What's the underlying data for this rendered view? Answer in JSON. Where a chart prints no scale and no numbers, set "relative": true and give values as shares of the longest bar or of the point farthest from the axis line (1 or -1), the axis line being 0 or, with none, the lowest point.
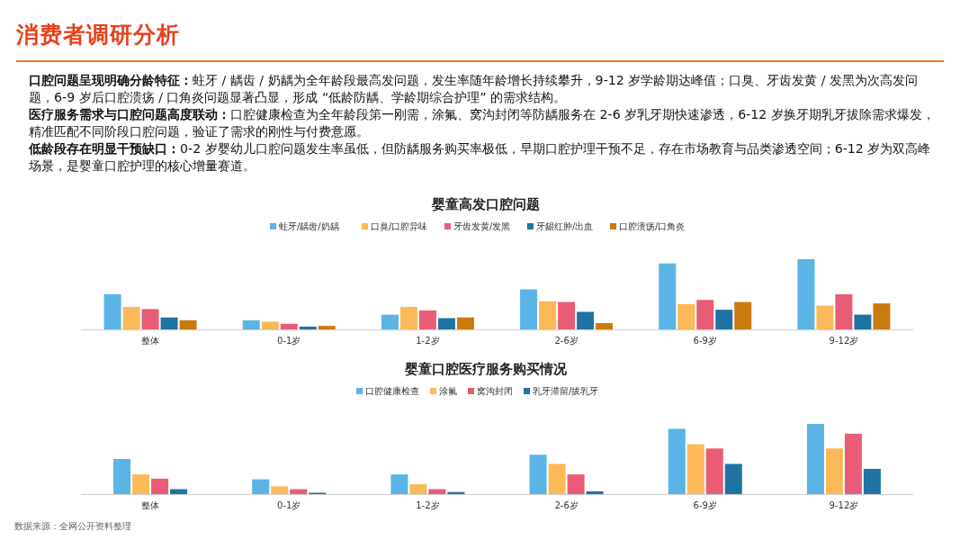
{
  "chart_data": [
    {
      "type": "other",
      "title": "消费者调研分析",
      "annotations": [
        "**口腔问题呈现明确分龄特征：**蛀牙 / 龋齿 / 奶龋为全年龄段最高发问题，发生率随年龄增长持续攀升，9-12 岁学龄期达峰值；口臭、牙齿发黄 / 发黑为次高发问题，6-9 岁后口腔溃疡 / 口角炎问题显著凸显，形成 “低龄防龋、学龄期综合护理” 的需求结构。",
        "**医疗服务需求与口腔问题高度联动：**口腔健康检查为全年龄段第一刚需，涂氟、窝沟封闭等防龋服务在 2-6 岁乳牙期快速渗透，6-12 岁换牙期乳牙拔除需求爆发，精准匹配不同阶段口腔问题，验证了需求的刚性与付费意愿。",
        "**低龄段存在明显干预缺口：**0-2 岁婴幼儿口腔问题发生率虽低，但防龋服务购买率极低，早期口腔护理干预不足，存在市场教育与品类渗透空间；6-12 岁为双高峰场景，是婴童口腔护理的核心增量赛道。"
      ]
    },
    {
      "type": "bar",
      "title": "婴童高发口腔问题",
      "relative": true,
      "legend": "top",
      "categories": [
        "整体",
        "0-1岁",
        "1-2岁",
        "2-6岁",
        "6-9岁",
        "9-12岁"
      ],
      "series": [
        {
          "name": "蛀牙/龋齿/奶龋",
          "color": "#5ab4e5",
          "values": [
            0.5,
            0.13,
            0.21,
            0.57,
            0.94,
            1
          ]
        },
        {
          "name": "口臭/口腔异味",
          "color": "#fbb957",
          "values": [
            0.32,
            0.11,
            0.32,
            0.4,
            0.36,
            0.34
          ]
        },
        {
          "name": "牙齿发黄/发黑",
          "color": "#e85d75",
          "values": [
            0.29,
            0.08,
            0.27,
            0.39,
            0.42,
            0.5
          ]
        },
        {
          "name": "牙龈红肿/出血",
          "color": "#1f73a3",
          "values": [
            0.17,
            0.04,
            0.16,
            0.25,
            0.28,
            0.21
          ]
        },
        {
          "name": "口腔溃疡/口角炎",
          "color": "#c97b0f",
          "values": [
            0.13,
            0.05,
            0.17,
            0.09,
            0.39,
            0.37
          ]
        }
      ]
    },
    {
      "type": "bar",
      "title": "婴童口腔医疗服务购买情况",
      "relative": true,
      "legend": "top",
      "categories": [
        "整体",
        "0-1岁",
        "1-2岁",
        "2-6岁",
        "6-9岁",
        "9-12岁"
      ],
      "series": [
        {
          "name": "口腔健康检查",
          "color": "#5ab4e5",
          "values": [
            0.5,
            0.21,
            0.28,
            0.56,
            0.93,
            1
          ]
        },
        {
          "name": "涂氟",
          "color": "#fbb957",
          "values": [
            0.28,
            0.11,
            0.14,
            0.43,
            0.71,
            0.65
          ]
        },
        {
          "name": "窝沟封闭",
          "color": "#e85d75",
          "values": [
            0.22,
            0.07,
            0.07,
            0.28,
            0.65,
            0.86
          ]
        },
        {
          "name": "乳牙滞留/拔乳牙",
          "color": "#1f73a3",
          "values": [
            0.07,
            0.02,
            0.03,
            0.04,
            0.43,
            0.36
          ]
        }
      ],
      "annotations": [
        "数据来源：全网公开资料整理"
      ]
    }
  ]
}
